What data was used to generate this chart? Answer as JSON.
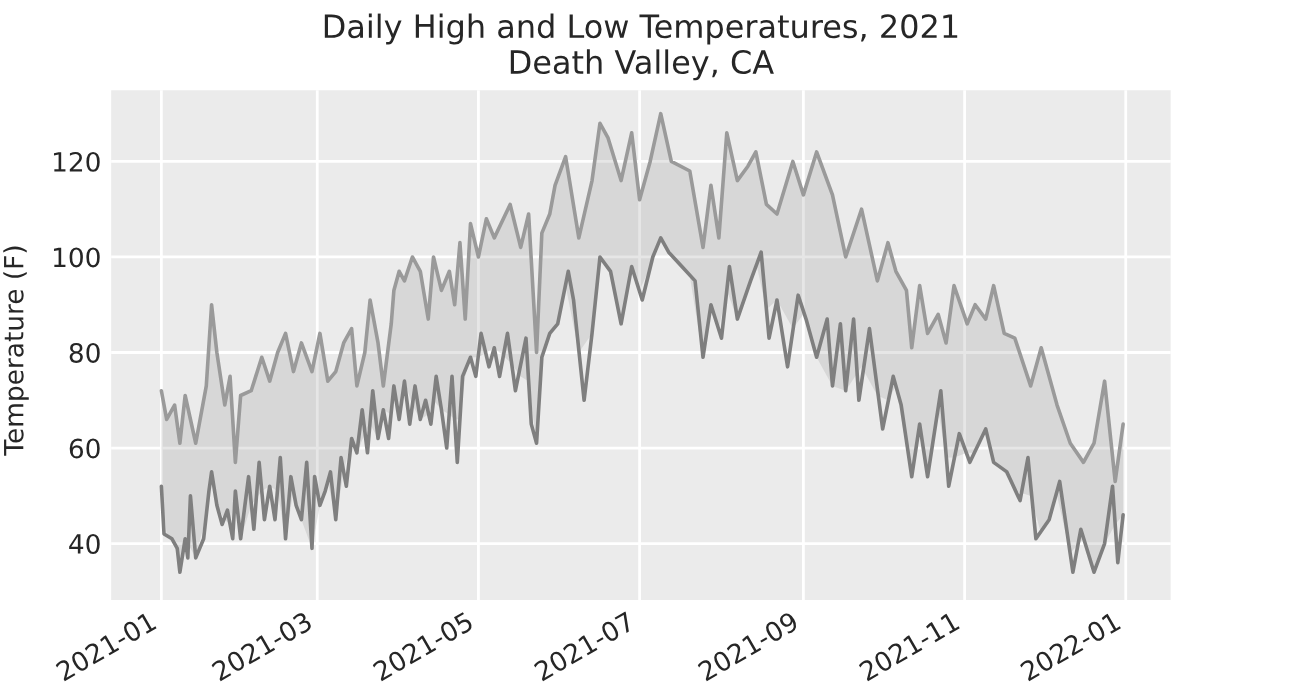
{
  "chart_data": {
    "type": "line",
    "title": "Daily High and Low Temperatures, 2021\nDeath Valley, CA",
    "ylabel": "Temperature (F)",
    "xlim": [
      "2020-12-13",
      "2022-01-18"
    ],
    "ylim": [
      28.2,
      134.9
    ],
    "xticks": [
      {
        "value": "2021-01-01",
        "label": "2021-01"
      },
      {
        "value": "2021-03-01",
        "label": "2021-03"
      },
      {
        "value": "2021-05-01",
        "label": "2021-05"
      },
      {
        "value": "2021-07-01",
        "label": "2021-07"
      },
      {
        "value": "2021-09-01",
        "label": "2021-09"
      },
      {
        "value": "2021-11-01",
        "label": "2021-11"
      },
      {
        "value": "2022-01-01",
        "label": "2022-01"
      }
    ],
    "yticks": [
      40,
      60,
      80,
      100,
      120
    ],
    "grid": true,
    "line_style": "solid",
    "marker": "none",
    "series": [
      {
        "color": "#9a9a9a",
        "x": [
          "2021-01-01",
          "2021-01-03",
          "2021-01-06",
          "2021-01-08",
          "2021-01-10",
          "2021-01-14",
          "2021-01-18",
          "2021-01-20",
          "2021-01-22",
          "2021-01-25",
          "2021-01-27",
          "2021-01-29",
          "2021-01-31",
          "2021-02-04",
          "2021-02-08",
          "2021-02-11",
          "2021-02-14",
          "2021-02-17",
          "2021-02-20",
          "2021-02-23",
          "2021-02-27",
          "2021-03-02",
          "2021-03-05",
          "2021-03-08",
          "2021-03-11",
          "2021-03-14",
          "2021-03-16",
          "2021-03-19",
          "2021-03-21",
          "2021-03-24",
          "2021-03-26",
          "2021-03-29",
          "2021-03-30",
          "2021-04-01",
          "2021-04-03",
          "2021-04-06",
          "2021-04-09",
          "2021-04-12",
          "2021-04-14",
          "2021-04-17",
          "2021-04-20",
          "2021-04-22",
          "2021-04-24",
          "2021-04-26",
          "2021-04-28",
          "2021-05-01",
          "2021-05-04",
          "2021-05-07",
          "2021-05-13",
          "2021-05-17",
          "2021-05-20",
          "2021-05-23",
          "2021-05-25",
          "2021-05-28",
          "2021-05-30",
          "2021-06-03",
          "2021-06-08",
          "2021-06-13",
          "2021-06-16",
          "2021-06-19",
          "2021-06-24",
          "2021-06-28",
          "2021-07-01",
          "2021-07-05",
          "2021-07-09",
          "2021-07-13",
          "2021-07-20",
          "2021-07-25",
          "2021-07-28",
          "2021-07-31",
          "2021-08-03",
          "2021-08-07",
          "2021-08-11",
          "2021-08-14",
          "2021-08-18",
          "2021-08-22",
          "2021-08-28",
          "2021-09-01",
          "2021-09-06",
          "2021-09-12",
          "2021-09-17",
          "2021-09-23",
          "2021-09-29",
          "2021-10-03",
          "2021-10-06",
          "2021-10-10",
          "2021-10-12",
          "2021-10-15",
          "2021-10-18",
          "2021-10-22",
          "2021-10-25",
          "2021-10-28",
          "2021-11-02",
          "2021-11-05",
          "2021-11-09",
          "2021-11-12",
          "2021-11-16",
          "2021-11-20",
          "2021-11-26",
          "2021-11-30",
          "2021-12-06",
          "2021-12-11",
          "2021-12-16",
          "2021-12-20",
          "2021-12-24",
          "2021-12-28",
          "2021-12-31"
        ],
        "values": [
          72,
          66,
          69,
          61,
          71,
          61,
          73,
          90,
          80,
          69,
          75,
          57,
          71,
          72,
          79,
          74,
          80,
          84,
          76,
          82,
          76,
          84,
          74,
          76,
          82,
          85,
          73,
          80,
          91,
          82,
          73,
          86,
          93,
          97,
          95,
          100,
          97,
          87,
          100,
          93,
          97,
          90,
          103,
          87,
          107,
          100,
          108,
          104,
          111,
          102,
          109,
          80,
          105,
          109,
          115,
          121,
          104,
          116,
          128,
          125,
          116,
          126,
          112,
          120,
          130,
          120,
          118,
          102,
          115,
          104,
          126,
          116,
          119,
          122,
          111,
          109,
          120,
          113,
          122,
          113,
          100,
          110,
          95,
          103,
          97,
          93,
          81,
          94,
          84,
          88,
          82,
          94,
          86,
          90,
          87,
          94,
          84,
          83,
          73,
          81,
          69,
          61,
          57,
          61,
          74,
          53,
          65
        ],
        "upper": [
          72,
          66,
          69,
          61,
          71,
          61,
          73,
          90,
          80,
          69,
          75,
          57,
          71,
          72,
          79,
          74,
          80,
          84,
          76,
          82,
          76,
          84,
          74,
          76,
          82,
          85,
          73,
          80,
          91,
          82,
          73,
          86,
          93,
          97,
          95,
          100,
          97,
          87,
          100,
          93,
          97,
          90,
          103,
          87,
          107,
          100,
          108,
          104,
          111,
          102,
          109,
          80,
          105,
          109,
          115,
          121,
          104,
          116,
          128,
          125,
          116,
          126,
          112,
          120,
          130,
          120,
          118,
          102,
          115,
          104,
          126,
          116,
          119,
          122,
          111,
          109,
          120,
          113,
          122,
          113,
          100,
          110,
          95,
          103,
          97,
          93,
          81,
          94,
          84,
          88,
          82,
          94,
          86,
          90,
          87,
          94,
          84,
          83,
          73,
          81,
          69,
          61,
          57,
          61,
          74,
          53,
          65
        ],
        "lower": [
          52,
          42,
          40,
          34,
          41,
          37,
          46,
          55,
          48,
          45,
          44,
          51,
          41,
          48,
          51,
          52,
          51,
          41,
          51,
          45,
          39,
          48,
          53,
          45,
          55,
          62,
          59,
          63,
          65,
          62,
          68,
          67,
          73,
          66,
          74,
          69,
          66,
          67,
          70,
          68,
          67,
          66,
          66,
          75,
          79,
          79,
          80,
          81,
          78,
          75,
          74,
          61,
          79,
          84,
          85,
          94,
          80,
          84,
          100,
          98,
          86,
          98,
          93,
          98,
          104,
          100,
          96,
          79,
          90,
          85,
          93,
          87,
          93,
          99,
          89,
          91,
          85,
          88,
          79,
          73,
          72,
          77,
          71,
          70,
          73,
          60,
          54,
          65,
          54,
          68,
          58,
          58,
          59,
          59,
          64,
          57,
          55,
          51,
          50,
          42,
          50,
          38,
          41,
          34,
          40,
          44,
          46
        ]
      },
      {
        "color": "#7f7f7f",
        "x": [
          "2021-01-01",
          "2021-01-02",
          "2021-01-05",
          "2021-01-07",
          "2021-01-08",
          "2021-01-10",
          "2021-01-11",
          "2021-01-12",
          "2021-01-14",
          "2021-01-17",
          "2021-01-19",
          "2021-01-20",
          "2021-01-22",
          "2021-01-24",
          "2021-01-26",
          "2021-01-28",
          "2021-01-29",
          "2021-01-31",
          "2021-02-03",
          "2021-02-05",
          "2021-02-07",
          "2021-02-09",
          "2021-02-11",
          "2021-02-13",
          "2021-02-15",
          "2021-02-17",
          "2021-02-19",
          "2021-02-21",
          "2021-02-23",
          "2021-02-25",
          "2021-02-27",
          "2021-02-28",
          "2021-03-02",
          "2021-03-04",
          "2021-03-06",
          "2021-03-08",
          "2021-03-10",
          "2021-03-12",
          "2021-03-14",
          "2021-03-16",
          "2021-03-18",
          "2021-03-20",
          "2021-03-22",
          "2021-03-24",
          "2021-03-26",
          "2021-03-28",
          "2021-03-30",
          "2021-04-01",
          "2021-04-03",
          "2021-04-05",
          "2021-04-07",
          "2021-04-09",
          "2021-04-11",
          "2021-04-13",
          "2021-04-15",
          "2021-04-17",
          "2021-04-19",
          "2021-04-21",
          "2021-04-23",
          "2021-04-25",
          "2021-04-28",
          "2021-04-30",
          "2021-05-02",
          "2021-05-05",
          "2021-05-07",
          "2021-05-09",
          "2021-05-12",
          "2021-05-15",
          "2021-05-19",
          "2021-05-21",
          "2021-05-23",
          "2021-05-25",
          "2021-05-28",
          "2021-05-31",
          "2021-06-04",
          "2021-06-06",
          "2021-06-10",
          "2021-06-13",
          "2021-06-16",
          "2021-06-20",
          "2021-06-24",
          "2021-06-28",
          "2021-07-02",
          "2021-07-06",
          "2021-07-09",
          "2021-07-12",
          "2021-07-17",
          "2021-07-22",
          "2021-07-25",
          "2021-07-28",
          "2021-08-01",
          "2021-08-04",
          "2021-08-07",
          "2021-08-12",
          "2021-08-16",
          "2021-08-19",
          "2021-08-22",
          "2021-08-26",
          "2021-08-30",
          "2021-09-02",
          "2021-09-06",
          "2021-09-10",
          "2021-09-12",
          "2021-09-15",
          "2021-09-17",
          "2021-09-20",
          "2021-09-22",
          "2021-09-26",
          "2021-10-01",
          "2021-10-05",
          "2021-10-08",
          "2021-10-12",
          "2021-10-15",
          "2021-10-18",
          "2021-10-23",
          "2021-10-26",
          "2021-10-30",
          "2021-11-03",
          "2021-11-09",
          "2021-11-12",
          "2021-11-17",
          "2021-11-22",
          "2021-11-25",
          "2021-11-28",
          "2021-12-03",
          "2021-12-07",
          "2021-12-12",
          "2021-12-15",
          "2021-12-20",
          "2021-12-24",
          "2021-12-27",
          "2021-12-29",
          "2021-12-31"
        ],
        "values": [
          52,
          42,
          41,
          39,
          34,
          41,
          37,
          50,
          37,
          41,
          51,
          55,
          48,
          44,
          47,
          41,
          51,
          41,
          54,
          43,
          57,
          45,
          52,
          45,
          58,
          41,
          54,
          48,
          45,
          57,
          39,
          54,
          48,
          51,
          55,
          45,
          58,
          52,
          62,
          59,
          68,
          59,
          72,
          62,
          68,
          62,
          73,
          66,
          74,
          65,
          73,
          66,
          70,
          65,
          75,
          68,
          60,
          75,
          57,
          75,
          79,
          75,
          84,
          77,
          81,
          75,
          84,
          72,
          83,
          65,
          61,
          79,
          84,
          86,
          97,
          91,
          70,
          84,
          100,
          97,
          86,
          98,
          91,
          100,
          104,
          101,
          98,
          95,
          79,
          90,
          83,
          98,
          87,
          95,
          101,
          83,
          91,
          77,
          92,
          87,
          79,
          87,
          73,
          86,
          72,
          87,
          70,
          85,
          64,
          75,
          69,
          54,
          65,
          54,
          72,
          52,
          63,
          57,
          64,
          57,
          55,
          49,
          58,
          41,
          45,
          53,
          34,
          43,
          34,
          40,
          52,
          36,
          46
        ]
      }
    ]
  }
}
